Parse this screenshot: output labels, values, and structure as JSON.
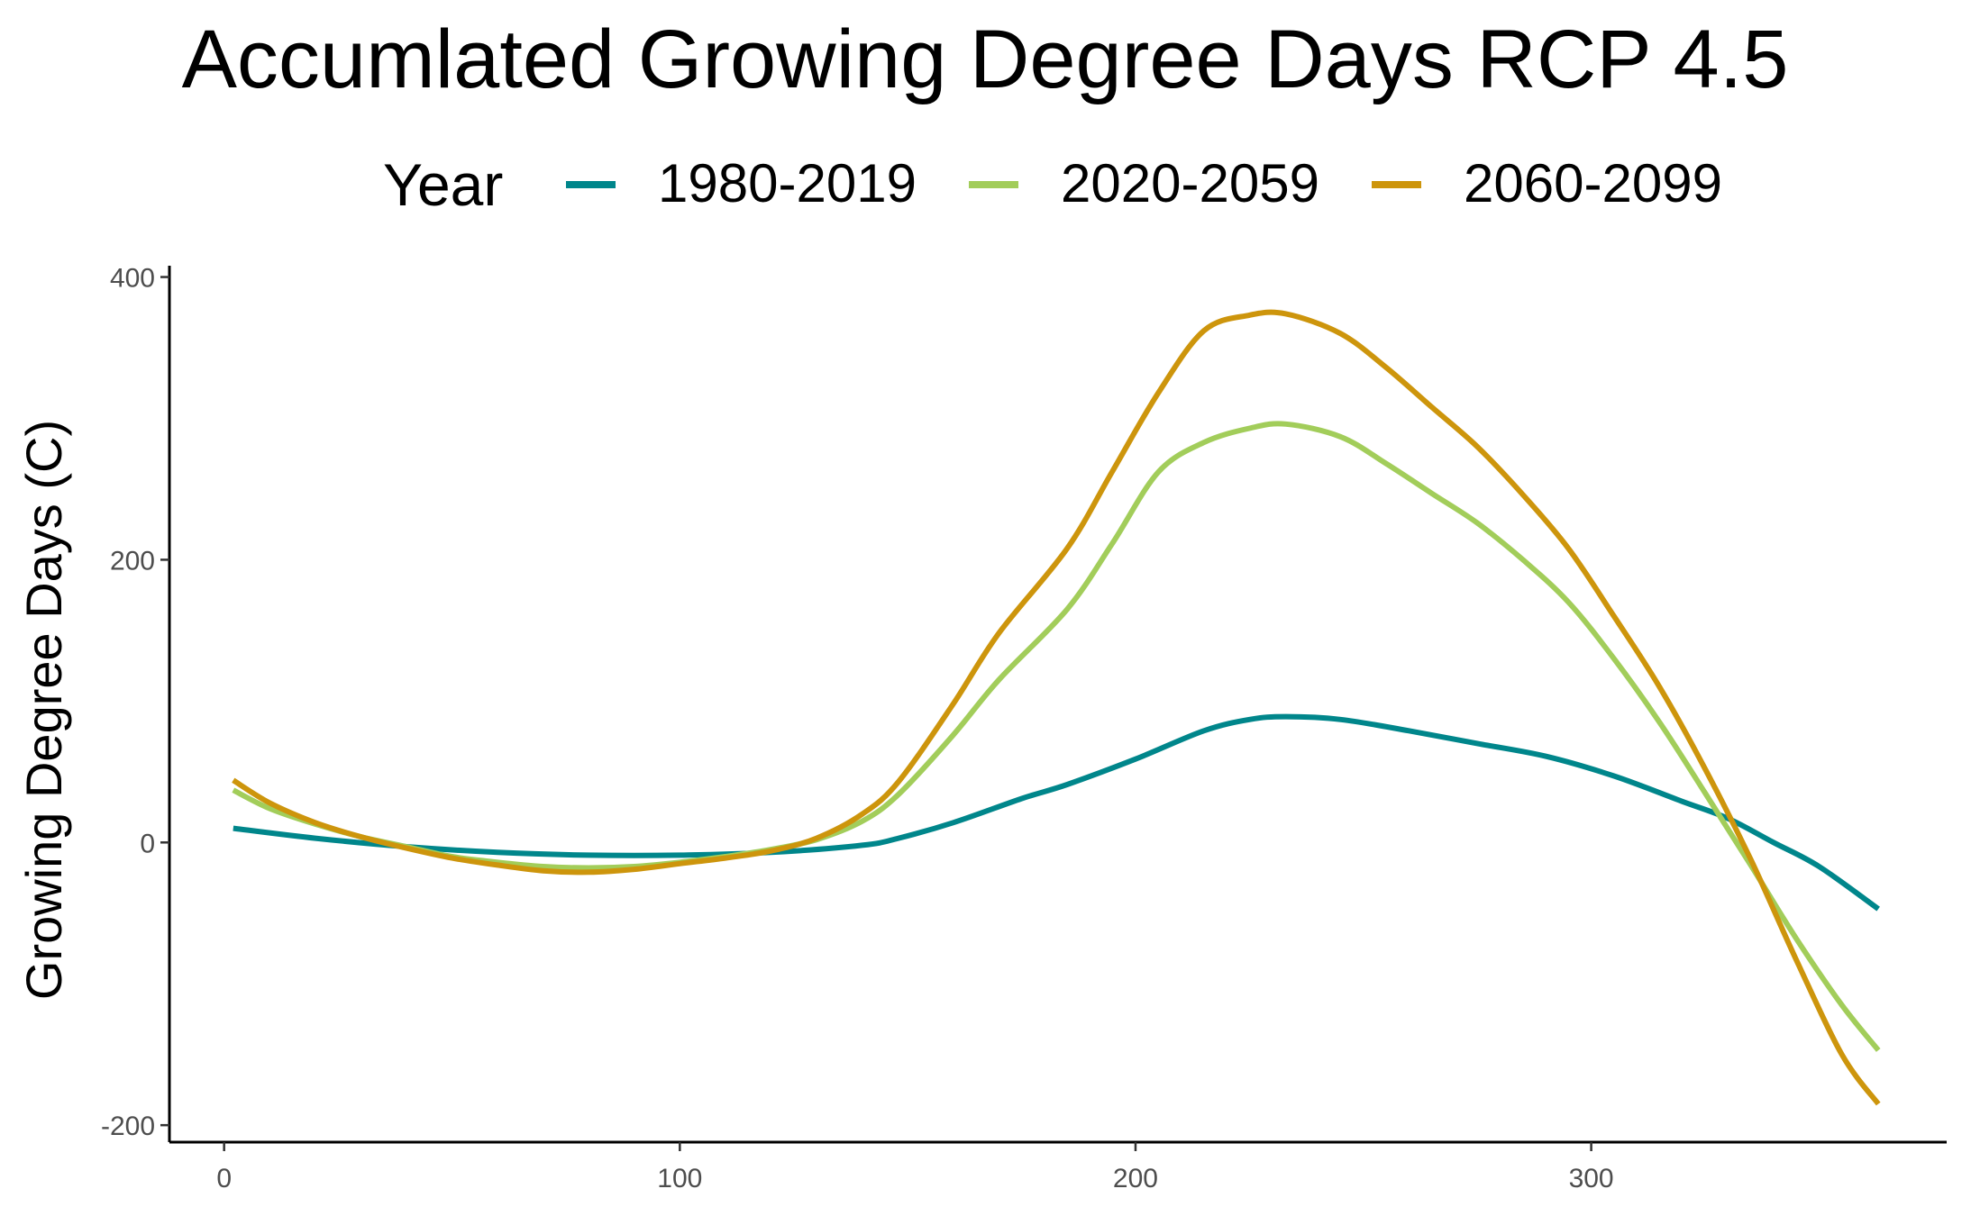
{
  "chart_data": {
    "type": "line",
    "title": "Accumlated Growing Degree Days RCP 4.5",
    "xlabel": "",
    "ylabel": "Growing Degree Days (C)",
    "xlim": [
      -12,
      378
    ],
    "ylim": [
      -212,
      408
    ],
    "x_ticks": [
      "0",
      "100",
      "200",
      "300"
    ],
    "y_ticks": [
      "-200",
      "0",
      "200",
      "400"
    ],
    "grid": false,
    "legend": {
      "title": "Year",
      "position": "top"
    },
    "series": [
      {
        "name": "1980-2019",
        "color": "#00868B",
        "x": [
          2,
          20,
          40,
          60,
          80,
          100,
          120,
          140,
          148,
          160,
          175,
          185,
          200,
          215,
          225,
          233,
          245,
          260,
          275,
          290,
          305,
          320,
          330,
          340,
          350,
          363
        ],
        "y": [
          10,
          3,
          -3,
          -7,
          -9,
          -9,
          -7,
          -2,
          3,
          14,
          31,
          41,
          59,
          79,
          87,
          89,
          87,
          79,
          70,
          61,
          47,
          29,
          17,
          0,
          -17,
          -47
        ]
      },
      {
        "name": "2020-2059",
        "color": "#A2CD5A",
        "x": [
          2,
          10,
          20,
          30,
          40,
          50,
          60,
          70,
          80,
          90,
          100,
          110,
          120,
          130,
          140,
          148,
          160,
          170,
          185,
          195,
          205,
          215,
          225,
          233,
          245,
          255,
          265,
          275,
          285,
          295,
          305,
          315,
          325,
          335,
          345,
          355,
          363
        ],
        "y": [
          37,
          24,
          13,
          4,
          -3,
          -10,
          -14,
          -17,
          -18,
          -17,
          -14,
          -10,
          -5,
          2,
          15,
          34,
          76,
          115,
          165,
          212,
          262,
          283,
          293,
          296,
          287,
          268,
          247,
          226,
          200,
          170,
          130,
          85,
          35,
          -16,
          -68,
          -115,
          -147
        ]
      },
      {
        "name": "2060-2099",
        "color": "#CD950C",
        "x": [
          2,
          10,
          20,
          30,
          40,
          50,
          60,
          70,
          80,
          90,
          100,
          110,
          120,
          130,
          140,
          148,
          160,
          170,
          185,
          195,
          205,
          215,
          225,
          233,
          245,
          255,
          265,
          275,
          285,
          295,
          305,
          315,
          325,
          335,
          345,
          355,
          363
        ],
        "y": [
          44,
          28,
          14,
          4,
          -4,
          -11,
          -16,
          -20,
          -21,
          -19,
          -15,
          -11,
          -6,
          3,
          20,
          43,
          98,
          148,
          208,
          263,
          318,
          362,
          373,
          374,
          360,
          336,
          308,
          280,
          246,
          208,
          160,
          110,
          52,
          -12,
          -83,
          -150,
          -185
        ]
      }
    ]
  }
}
